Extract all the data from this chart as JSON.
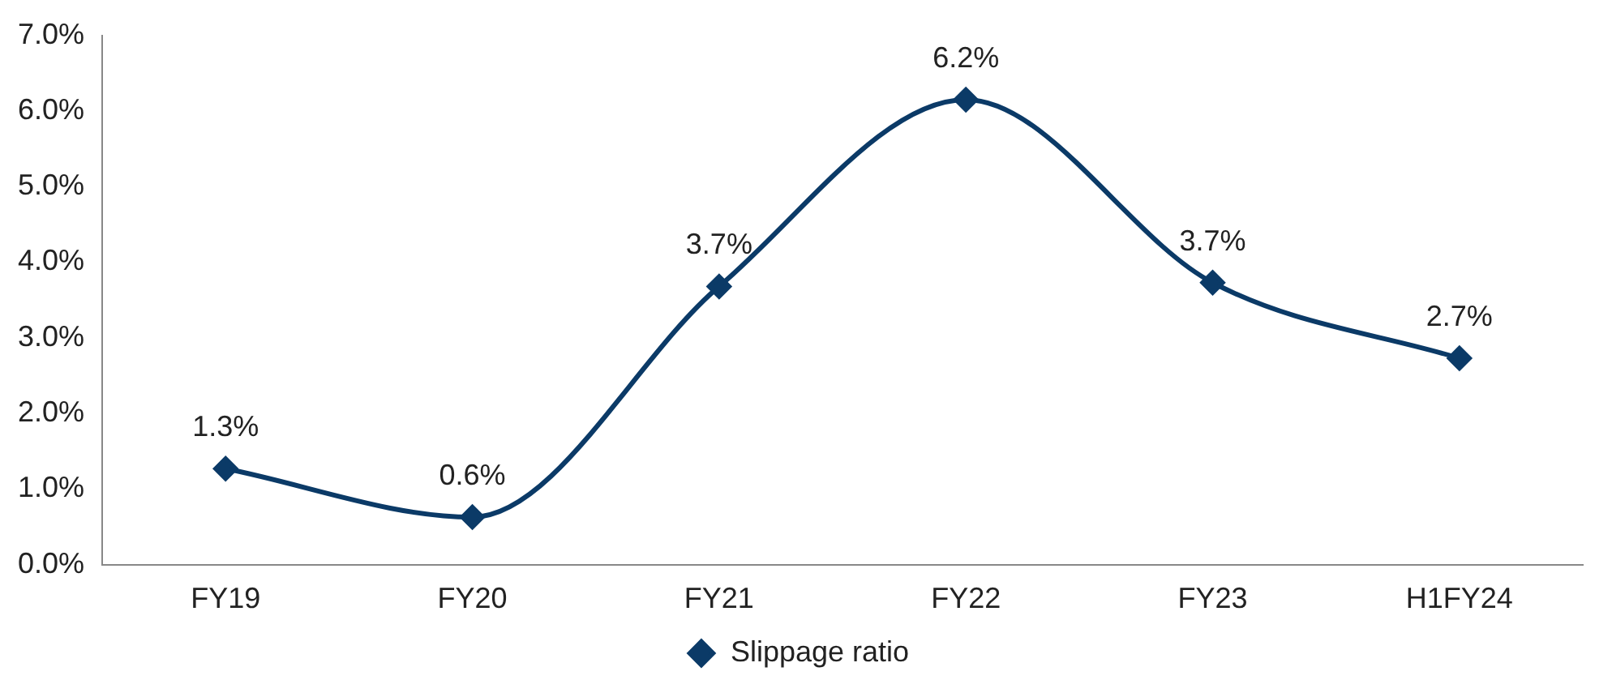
{
  "chart_data": {
    "type": "line",
    "categories": [
      "FY19",
      "FY20",
      "FY21",
      "FY22",
      "FY23",
      "H1FY24"
    ],
    "series": [
      {
        "name": "Slippage ratio",
        "color": "#0b3a67",
        "values": [
          1.27,
          0.63,
          3.68,
          6.15,
          3.73,
          2.73
        ],
        "value_labels": [
          "1.3%",
          "0.6%",
          "3.7%",
          "6.2%",
          "3.7%",
          "2.7%"
        ]
      }
    ],
    "ylim": [
      0,
      7
    ],
    "yticks": [
      {
        "value": 0,
        "label": "0.0%"
      },
      {
        "value": 1,
        "label": "1.0%"
      },
      {
        "value": 2,
        "label": "2.0%"
      },
      {
        "value": 3,
        "label": "3.0%"
      },
      {
        "value": 4,
        "label": "4.0%"
      },
      {
        "value": 5,
        "label": "5.0%"
      },
      {
        "value": 6,
        "label": "6.0%"
      },
      {
        "value": 7,
        "label": "7.0%"
      }
    ],
    "legend": "bottom",
    "marker": "diamond"
  }
}
